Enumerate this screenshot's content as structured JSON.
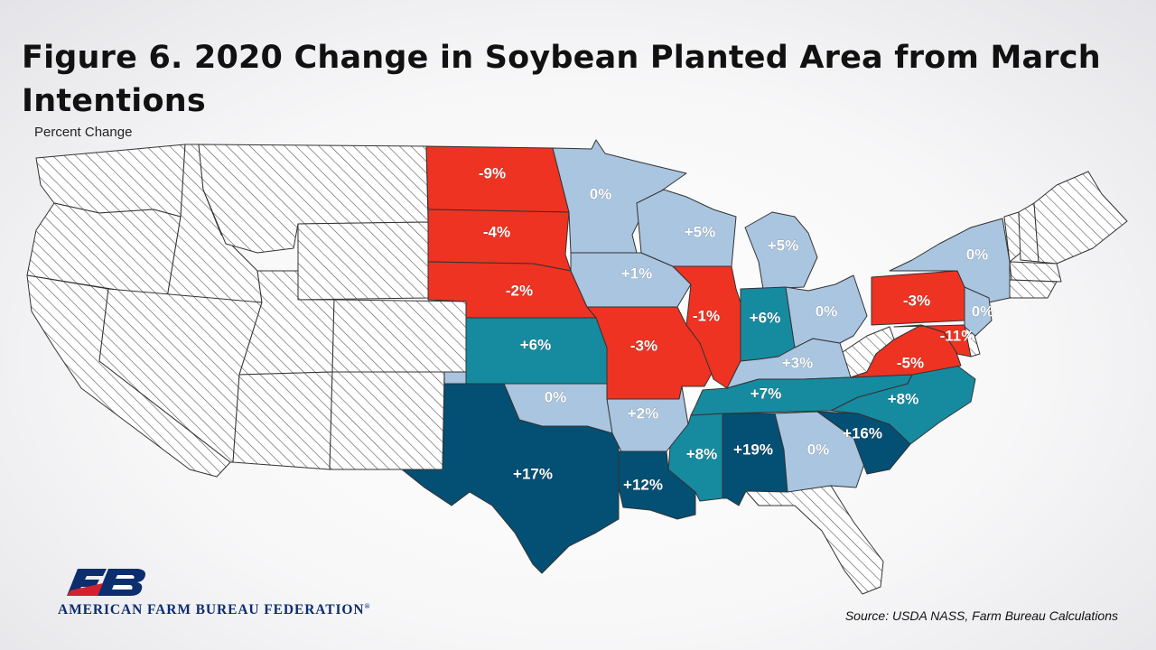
{
  "title": "Figure 6. 2020 Change in Soybean Planted Area from March Intentions",
  "subtitle": "Percent Change",
  "source": "Source: USDA NASS, Farm Bureau Calculations",
  "logo_text": "AMERICAN FARM BUREAU FEDERATION",
  "logo_reg": "®",
  "colors": {
    "decrease": "#ee3322",
    "increase_light": "#a9c5e0",
    "increase_mid": "#168ba0",
    "increase_high": "#044f74",
    "no_data": "#ffffff",
    "hatch": "#555555",
    "border": "#333333"
  },
  "states": [
    {
      "id": "ND",
      "label": "-9%"
    },
    {
      "id": "SD",
      "label": "-4%"
    },
    {
      "id": "NE",
      "label": "-2%"
    },
    {
      "id": "KS",
      "label": "+6%"
    },
    {
      "id": "OK",
      "label": "0%"
    },
    {
      "id": "TX",
      "label": "+17%"
    },
    {
      "id": "MN",
      "label": "0%"
    },
    {
      "id": "IA",
      "label": "+1%"
    },
    {
      "id": "MO",
      "label": "-3%"
    },
    {
      "id": "AR",
      "label": "+2%"
    },
    {
      "id": "LA",
      "label": "+12%"
    },
    {
      "id": "WI",
      "label": "+5%"
    },
    {
      "id": "IL",
      "label": "-1%"
    },
    {
      "id": "MS",
      "label": "+8%"
    },
    {
      "id": "MI",
      "label": "+5%"
    },
    {
      "id": "IN",
      "label": "+6%"
    },
    {
      "id": "KY",
      "label": "+3%"
    },
    {
      "id": "TN",
      "label": "+7%"
    },
    {
      "id": "AL",
      "label": "+19%"
    },
    {
      "id": "OH",
      "label": "0%"
    },
    {
      "id": "GA",
      "label": "0%"
    },
    {
      "id": "SC",
      "label": "+16%"
    },
    {
      "id": "NC",
      "label": "+8%"
    },
    {
      "id": "VA",
      "label": "-5%"
    },
    {
      "id": "PA",
      "label": "-3%"
    },
    {
      "id": "NY",
      "label": "0%"
    },
    {
      "id": "NJ",
      "label": "0%"
    },
    {
      "id": "MD",
      "label": "-11%"
    }
  ]
}
